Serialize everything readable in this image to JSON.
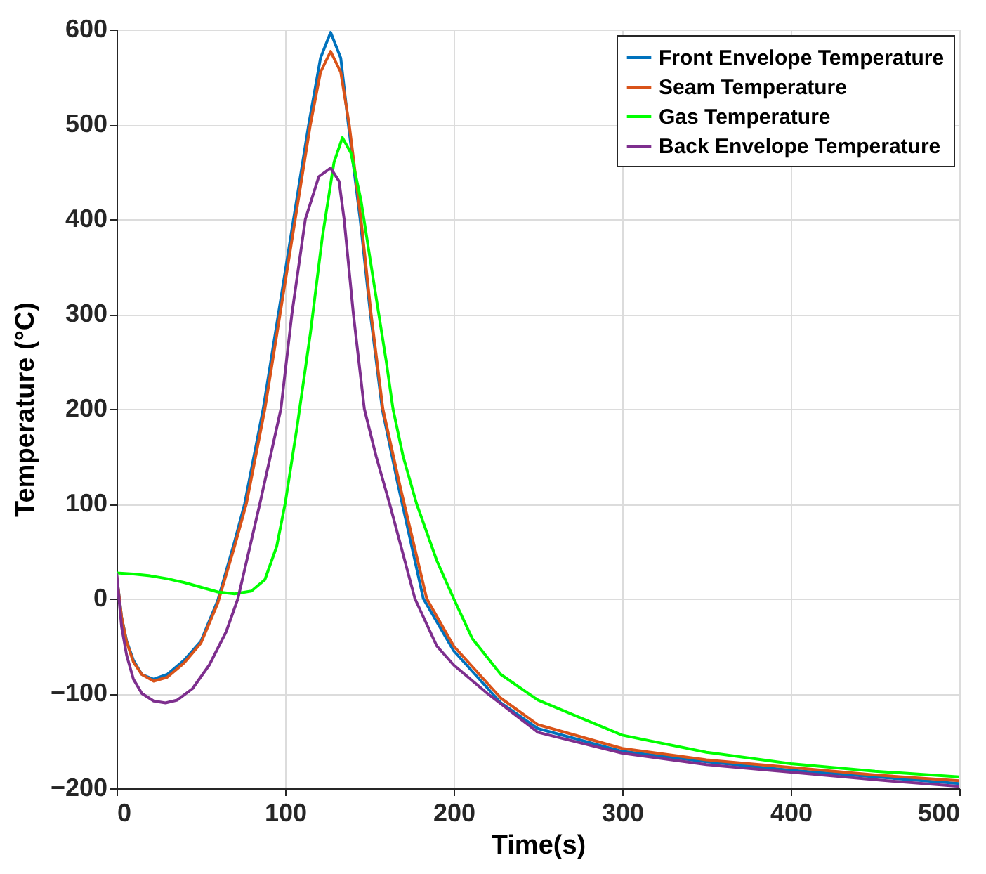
{
  "chart_data": {
    "type": "line",
    "xlabel": "Time(s)",
    "ylabel": "Temperature (°C)",
    "xlim": [
      0,
      500
    ],
    "ylim": [
      -200,
      600
    ],
    "xticks": [
      0,
      100,
      200,
      300,
      400,
      500
    ],
    "yticks": [
      -200,
      -100,
      0,
      100,
      200,
      300,
      400,
      500,
      600
    ],
    "grid": true,
    "legend": "top right",
    "line_style": "solid",
    "marker": "none",
    "series": [
      {
        "name": "Front Envelope Temperature",
        "color": "#0072bd",
        "x": [
          0,
          3,
          6,
          10,
          15,
          22,
          30,
          40,
          50,
          60,
          70,
          76,
          87,
          96,
          105,
          114,
          121,
          127,
          133,
          137.5,
          144.5,
          150.6,
          157.6,
          167,
          182,
          200,
          228,
          250,
          300,
          350,
          400,
          450,
          500
        ],
        "values": [
          25,
          -20,
          -45,
          -65,
          -80,
          -85,
          -80,
          -65,
          -45,
          -2,
          60,
          100,
          200,
          300,
          400,
          500,
          570,
          597,
          570,
          500,
          400,
          300,
          200,
          120,
          0,
          -55,
          -110,
          -137,
          -161,
          -172,
          -181,
          -188,
          -195
        ]
      },
      {
        "name": "Seam Temperature",
        "color": "#d95319",
        "x": [
          0,
          3,
          6,
          10,
          15,
          22,
          30,
          40,
          50,
          60,
          70,
          77,
          88,
          97,
          106,
          115,
          121,
          127,
          133,
          138,
          145,
          151,
          158,
          168,
          184,
          200,
          228,
          250,
          300,
          350,
          400,
          450,
          500
        ],
        "values": [
          25,
          -20,
          -46,
          -67,
          -80,
          -87,
          -83,
          -68,
          -47,
          -5,
          55,
          100,
          200,
          300,
          400,
          500,
          555,
          577,
          555,
          500,
          400,
          300,
          200,
          120,
          0,
          -50,
          -105,
          -133,
          -158,
          -170,
          -178,
          -186,
          -192
        ]
      },
      {
        "name": "Gas Temperature",
        "color": "#00ff00",
        "x": [
          0,
          10,
          20,
          30,
          40,
          50,
          60,
          70,
          80,
          88,
          95,
          100,
          107,
          115,
          122,
          129,
          134,
          139,
          145,
          152,
          160,
          164,
          170,
          178,
          190,
          200,
          211,
          228,
          250,
          300,
          350,
          400,
          450,
          500
        ],
        "values": [
          27,
          26,
          24,
          21,
          17,
          12,
          7,
          5,
          8,
          20,
          55,
          100,
          180,
          280,
          380,
          460,
          486,
          470,
          420,
          340,
          250,
          200,
          150,
          100,
          40,
          0,
          -42,
          -80,
          -107,
          -144,
          -162,
          -174,
          -182,
          -188
        ]
      },
      {
        "name": "Back Envelope Temperature",
        "color": "#7e2f8e",
        "x": [
          0,
          3,
          6,
          10,
          15,
          22,
          29,
          36,
          45,
          55,
          65,
          72,
          85,
          97.5,
          104,
          112,
          120,
          127,
          132,
          135,
          140.5,
          147,
          154,
          162,
          177,
          190,
          200,
          220,
          250,
          300,
          350,
          400,
          450,
          500
        ],
        "values": [
          27,
          -30,
          -60,
          -85,
          -100,
          -108,
          -110,
          -107,
          -95,
          -70,
          -35,
          0,
          100,
          200,
          300,
          400,
          445,
          454,
          440,
          400,
          300,
          200,
          150,
          100,
          0,
          -50,
          -70,
          -100,
          -141,
          -163,
          -175,
          -183,
          -191,
          -198
        ]
      }
    ]
  }
}
